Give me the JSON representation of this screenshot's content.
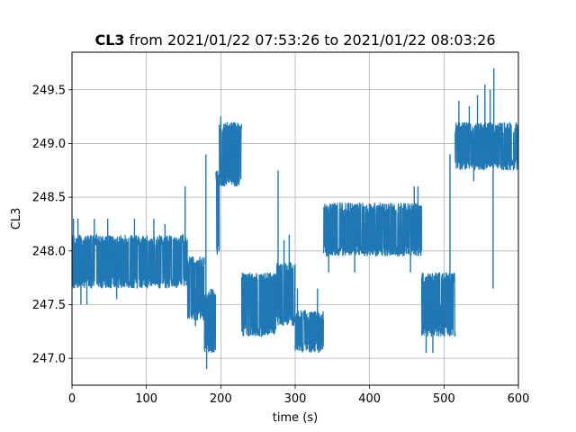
{
  "chart_data": {
    "type": "line",
    "title_bold": "CL3",
    "title_rest": " from 2021/01/22 07:53:26 to 2021/01/22 08:03:26",
    "xlabel": "time (s)",
    "ylabel": "CL3",
    "xlim": [
      0,
      600
    ],
    "ylim": [
      246.75,
      249.85
    ],
    "xticks": [
      0,
      100,
      200,
      300,
      400,
      500,
      600
    ],
    "yticks": [
      247.0,
      247.5,
      248.0,
      248.5,
      249.0,
      249.5
    ],
    "xtick_labels": [
      "0",
      "100",
      "200",
      "300",
      "400",
      "500",
      "600"
    ],
    "ytick_labels": [
      "247.0",
      "247.5",
      "248.0",
      "248.5",
      "249.0",
      "249.5"
    ],
    "grid": true,
    "line_color": "#1f77b4",
    "segments": [
      {
        "x_start": 0,
        "x_end": 155,
        "low": 247.65,
        "high": 248.15,
        "spikes": [
          {
            "x": 2,
            "y": 248.3
          },
          {
            "x": 8,
            "y": 248.3
          },
          {
            "x": 12,
            "y": 247.5
          },
          {
            "x": 30,
            "y": 248.3
          },
          {
            "x": 48,
            "y": 248.3
          },
          {
            "x": 84,
            "y": 248.3
          },
          {
            "x": 110,
            "y": 248.3
          },
          {
            "x": 125,
            "y": 248.25
          },
          {
            "x": 152,
            "y": 248.6
          },
          {
            "x": 20,
            "y": 247.5
          },
          {
            "x": 60,
            "y": 247.55
          }
        ]
      },
      {
        "x_start": 155,
        "x_end": 178,
        "low": 247.35,
        "high": 247.95,
        "spikes": [
          {
            "x": 166,
            "y": 247.3
          }
        ]
      },
      {
        "x_start": 178,
        "x_end": 193,
        "low": 247.05,
        "high": 247.65,
        "spikes": [
          {
            "x": 180,
            "y": 248.9
          },
          {
            "x": 181,
            "y": 246.9
          },
          {
            "x": 186,
            "y": 247.1
          }
        ]
      },
      {
        "x_start": 193,
        "x_end": 198,
        "low": 247.95,
        "high": 248.75,
        "spikes": [
          {
            "x": 195,
            "y": 248.3
          }
        ]
      },
      {
        "x_start": 198,
        "x_end": 228,
        "low": 248.6,
        "high": 249.2,
        "spikes": [
          {
            "x": 200,
            "y": 249.25
          },
          {
            "x": 205,
            "y": 248.6
          },
          {
            "x": 220,
            "y": 249.0
          },
          {
            "x": 225,
            "y": 248.65
          }
        ]
      },
      {
        "x_start": 228,
        "x_end": 275,
        "low": 247.2,
        "high": 247.8,
        "spikes": [
          {
            "x": 232,
            "y": 247.3
          },
          {
            "x": 255,
            "y": 247.2
          }
        ]
      },
      {
        "x_start": 275,
        "x_end": 300,
        "low": 247.3,
        "high": 247.9,
        "spikes": [
          {
            "x": 277,
            "y": 248.75
          },
          {
            "x": 285,
            "y": 248.1
          },
          {
            "x": 292,
            "y": 248.15
          }
        ]
      },
      {
        "x_start": 300,
        "x_end": 338,
        "low": 247.05,
        "high": 247.45,
        "spikes": [
          {
            "x": 303,
            "y": 247.65
          },
          {
            "x": 330,
            "y": 247.65
          }
        ]
      },
      {
        "x_start": 338,
        "x_end": 470,
        "low": 247.95,
        "high": 248.45,
        "spikes": [
          {
            "x": 345,
            "y": 247.8
          },
          {
            "x": 380,
            "y": 247.8
          },
          {
            "x": 460,
            "y": 248.6
          },
          {
            "x": 465,
            "y": 248.6
          },
          {
            "x": 455,
            "y": 247.8
          }
        ]
      },
      {
        "x_start": 470,
        "x_end": 515,
        "low": 247.2,
        "high": 247.8,
        "spikes": [
          {
            "x": 476,
            "y": 247.05
          },
          {
            "x": 485,
            "y": 247.05
          },
          {
            "x": 496,
            "y": 247.3
          },
          {
            "x": 508,
            "y": 248.9
          }
        ]
      },
      {
        "x_start": 515,
        "x_end": 600,
        "low": 248.75,
        "high": 249.2,
        "spikes": [
          {
            "x": 520,
            "y": 249.4
          },
          {
            "x": 534,
            "y": 249.35
          },
          {
            "x": 545,
            "y": 249.45
          },
          {
            "x": 555,
            "y": 249.55
          },
          {
            "x": 562,
            "y": 249.5
          },
          {
            "x": 567,
            "y": 249.7
          },
          {
            "x": 566,
            "y": 247.65
          },
          {
            "x": 540,
            "y": 248.65
          },
          {
            "x": 580,
            "y": 248.85
          }
        ]
      }
    ]
  }
}
